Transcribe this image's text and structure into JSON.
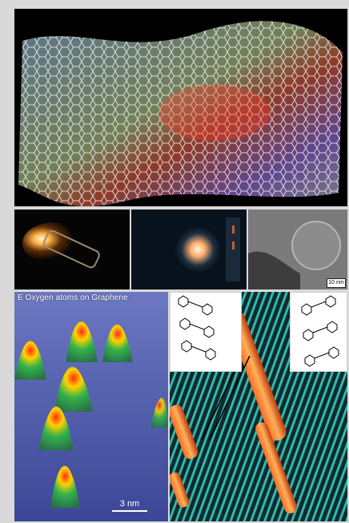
{
  "figure": {
    "panels": [
      {
        "id": "graphene-sheet",
        "kind": "photo",
        "description": "wavy graphene honeycomb sheet"
      },
      {
        "id": "lamp-glow-1",
        "kind": "photo"
      },
      {
        "id": "lamp-glow-2",
        "kind": "photo"
      },
      {
        "id": "tem-image",
        "kind": "photo"
      },
      {
        "id": "oxygen-afm",
        "kind": "photo"
      },
      {
        "id": "stm-rows",
        "kind": "photo"
      }
    ],
    "labels": {
      "oxygen_title": "E Oxygen atoms on Graphene",
      "scale_3nm": "3 nm",
      "scale_10nm": "10 nm"
    }
  },
  "colors": {
    "frame_bg": "#d9d9d9",
    "graphene_bg": "#000000",
    "oxygen_bg": "#4c5aa8",
    "stm_bg": "#0d2d2d",
    "stm_bar": "#d4501a"
  }
}
